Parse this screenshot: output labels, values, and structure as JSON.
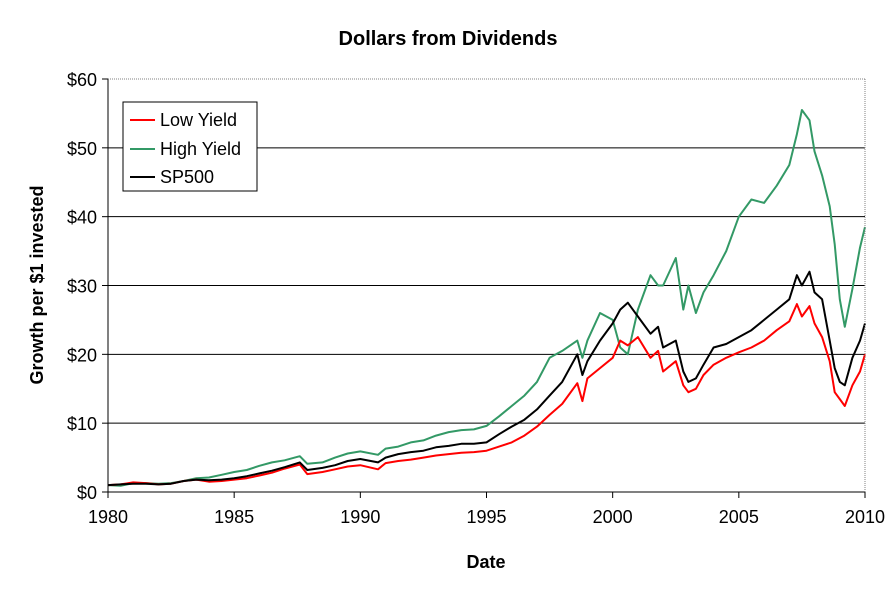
{
  "chart_data": {
    "type": "line",
    "title": "Dollars from Dividends",
    "xlabel": "Date",
    "ylabel": "Growth per $1 invested",
    "xlim": [
      1980,
      2010
    ],
    "ylim": [
      0,
      60
    ],
    "x_ticks": [
      1980,
      1985,
      1990,
      1995,
      2000,
      2005,
      2010
    ],
    "x_tick_labels": [
      "1980",
      "1985",
      "1990",
      "1995",
      "2000",
      "2005",
      "2010"
    ],
    "y_ticks": [
      0,
      10,
      20,
      30,
      40,
      50,
      60
    ],
    "y_tick_labels": [
      "$0",
      "$10",
      "$20",
      "$30",
      "$40",
      "$50",
      "$60"
    ],
    "grid": "horizontal",
    "legend_position": "top-left",
    "x": [
      1980.0,
      1980.5,
      1981.0,
      1981.5,
      1982.0,
      1982.5,
      1983.0,
      1983.5,
      1984.0,
      1984.5,
      1985.0,
      1985.5,
      1986.0,
      1986.5,
      1987.0,
      1987.6,
      1987.9,
      1988.5,
      1989.0,
      1989.5,
      1990.0,
      1990.7,
      1991.0,
      1991.5,
      1992.0,
      1992.5,
      1993.0,
      1993.5,
      1994.0,
      1994.5,
      1995.0,
      1995.5,
      1996.0,
      1996.5,
      1997.0,
      1997.5,
      1998.0,
      1998.6,
      1998.8,
      1999.0,
      1999.5,
      2000.0,
      2000.3,
      2000.6,
      2001.0,
      2001.5,
      2001.8,
      2002.0,
      2002.5,
      2002.8,
      2003.0,
      2003.3,
      2003.6,
      2004.0,
      2004.5,
      2005.0,
      2005.5,
      2006.0,
      2006.5,
      2007.0,
      2007.3,
      2007.5,
      2007.8,
      2008.0,
      2008.3,
      2008.6,
      2008.8,
      2009.0,
      2009.2,
      2009.5,
      2009.8,
      2010.0
    ],
    "series": [
      {
        "name": "Low Yield",
        "color": "#ff0000",
        "values": [
          1.0,
          1.1,
          1.4,
          1.3,
          1.1,
          1.2,
          1.6,
          1.8,
          1.5,
          1.6,
          1.8,
          2.0,
          2.4,
          2.8,
          3.4,
          4.0,
          2.6,
          2.9,
          3.3,
          3.7,
          3.9,
          3.3,
          4.2,
          4.5,
          4.7,
          5.0,
          5.3,
          5.5,
          5.7,
          5.8,
          6.0,
          6.6,
          7.2,
          8.2,
          9.5,
          11.2,
          12.8,
          15.8,
          13.2,
          16.5,
          18.0,
          19.5,
          22.0,
          21.3,
          22.5,
          19.5,
          20.5,
          17.5,
          19.0,
          15.5,
          14.5,
          15.0,
          17.0,
          18.5,
          19.5,
          20.3,
          21.0,
          22.0,
          23.5,
          24.8,
          27.3,
          25.5,
          27.0,
          24.5,
          22.5,
          19.0,
          14.5,
          13.5,
          12.5,
          15.5,
          17.5,
          20.0
        ]
      },
      {
        "name": "High Yield",
        "color": "#339966",
        "values": [
          1.0,
          0.9,
          1.3,
          1.3,
          1.2,
          1.3,
          1.6,
          2.0,
          2.1,
          2.5,
          2.9,
          3.2,
          3.8,
          4.3,
          4.6,
          5.2,
          4.1,
          4.3,
          5.0,
          5.6,
          5.9,
          5.4,
          6.3,
          6.6,
          7.2,
          7.5,
          8.2,
          8.7,
          9.0,
          9.1,
          9.6,
          11.0,
          12.5,
          14.0,
          16.0,
          19.5,
          20.5,
          22.0,
          19.5,
          22.0,
          26.0,
          25.0,
          21.0,
          20.0,
          26.5,
          31.5,
          30.0,
          30.0,
          34.0,
          26.5,
          30.0,
          26.0,
          29.0,
          31.5,
          35.0,
          40.0,
          42.5,
          42.0,
          44.5,
          47.5,
          52.0,
          55.5,
          54.0,
          49.5,
          46.0,
          41.5,
          36.0,
          28.0,
          24.0,
          29.5,
          35.5,
          38.5
        ]
      },
      {
        "name": "SP500",
        "color": "#000000",
        "values": [
          1.0,
          1.1,
          1.2,
          1.2,
          1.1,
          1.2,
          1.6,
          1.8,
          1.7,
          1.8,
          2.0,
          2.3,
          2.7,
          3.1,
          3.6,
          4.3,
          3.2,
          3.5,
          3.9,
          4.5,
          4.8,
          4.3,
          5.0,
          5.5,
          5.8,
          6.0,
          6.5,
          6.7,
          7.0,
          7.0,
          7.2,
          8.4,
          9.5,
          10.5,
          12.0,
          14.0,
          16.0,
          20.0,
          17.0,
          19.0,
          22.0,
          24.5,
          26.5,
          27.5,
          25.5,
          23.0,
          24.0,
          21.0,
          22.0,
          17.5,
          16.0,
          16.5,
          18.5,
          21.0,
          21.5,
          22.5,
          23.5,
          25.0,
          26.5,
          28.0,
          31.5,
          30.0,
          32.0,
          29.0,
          28.0,
          22.0,
          18.0,
          16.0,
          15.5,
          19.5,
          22.0,
          24.5
        ]
      }
    ]
  }
}
